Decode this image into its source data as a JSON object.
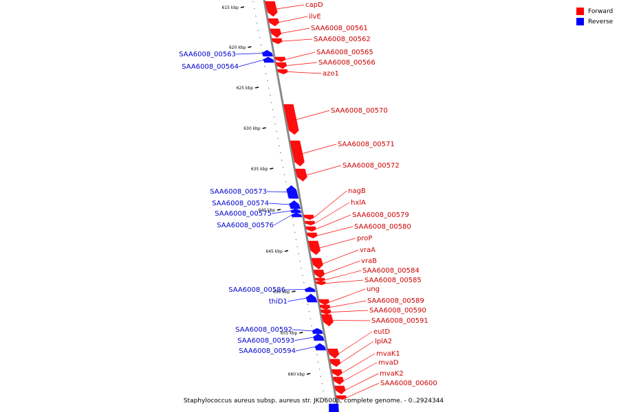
{
  "legend": {
    "items": [
      {
        "label": "Forward",
        "color": "#ff0000"
      },
      {
        "label": "Reverse",
        "color": "#0000ff"
      }
    ]
  },
  "caption": "Staphylococcus aureus subsp. aureus str. JKD6008, complete genome. - 0..2924344",
  "colors": {
    "forward": "#ff0000",
    "reverse": "#0000ff",
    "backbone": "#888888",
    "leader": "#000000"
  },
  "ticks": [
    {
      "label": "615 kbp",
      "kbp": 615
    },
    {
      "label": "620 kbp",
      "kbp": 620
    },
    {
      "label": "625 kbp",
      "kbp": 625
    },
    {
      "label": "630 kbp",
      "kbp": 630
    },
    {
      "label": "635 kbp",
      "kbp": 635
    },
    {
      "label": "640 kbp",
      "kbp": 640
    },
    {
      "label": "645 kbp",
      "kbp": 645
    },
    {
      "label": "650 kbp",
      "kbp": 650
    },
    {
      "label": "655 kbp",
      "kbp": 655
    },
    {
      "label": "660 kbp",
      "kbp": 660
    }
  ],
  "genes": [
    {
      "name": "capD",
      "strand": "forward"
    },
    {
      "name": "ilvE",
      "strand": "forward"
    },
    {
      "name": "SAA6008_00561",
      "strand": "forward"
    },
    {
      "name": "SAA6008_00562",
      "strand": "forward"
    },
    {
      "name": "SAA6008_00563",
      "strand": "reverse"
    },
    {
      "name": "SAA6008_00564",
      "strand": "reverse"
    },
    {
      "name": "SAA6008_00565",
      "strand": "forward"
    },
    {
      "name": "SAA6008_00566",
      "strand": "forward"
    },
    {
      "name": "azo1",
      "strand": "forward"
    },
    {
      "name": "SAA6008_00570",
      "strand": "forward"
    },
    {
      "name": "SAA6008_00571",
      "strand": "forward"
    },
    {
      "name": "SAA6008_00572",
      "strand": "forward"
    },
    {
      "name": "SAA6008_00573",
      "strand": "reverse"
    },
    {
      "name": "SAA6008_00574",
      "strand": "reverse"
    },
    {
      "name": "SAA6008_00575",
      "strand": "reverse"
    },
    {
      "name": "SAA6008_00576",
      "strand": "reverse"
    },
    {
      "name": "nagB",
      "strand": "forward"
    },
    {
      "name": "hxlA",
      "strand": "forward"
    },
    {
      "name": "SAA6008_00579",
      "strand": "forward"
    },
    {
      "name": "SAA6008_00580",
      "strand": "forward"
    },
    {
      "name": "proP",
      "strand": "forward"
    },
    {
      "name": "vraA",
      "strand": "forward"
    },
    {
      "name": "vraB",
      "strand": "forward"
    },
    {
      "name": "SAA6008_00584",
      "strand": "forward"
    },
    {
      "name": "SAA6008_00585",
      "strand": "forward"
    },
    {
      "name": "SAA6008_00586",
      "strand": "reverse"
    },
    {
      "name": "thiD1",
      "strand": "reverse"
    },
    {
      "name": "ung",
      "strand": "forward"
    },
    {
      "name": "SAA6008_00589",
      "strand": "forward"
    },
    {
      "name": "SAA6008_00590",
      "strand": "forward"
    },
    {
      "name": "SAA6008_00591",
      "strand": "forward"
    },
    {
      "name": "SAA6008_00592",
      "strand": "reverse"
    },
    {
      "name": "SAA6008_00593",
      "strand": "reverse"
    },
    {
      "name": "SAA6008_00594",
      "strand": "reverse"
    },
    {
      "name": "eutD",
      "strand": "forward"
    },
    {
      "name": "lplA2",
      "strand": "forward"
    },
    {
      "name": "mvaK1",
      "strand": "forward"
    },
    {
      "name": "mvaD",
      "strand": "forward"
    },
    {
      "name": "mvaK2",
      "strand": "forward"
    },
    {
      "name": "SAA6008_00600",
      "strand": "forward"
    }
  ]
}
